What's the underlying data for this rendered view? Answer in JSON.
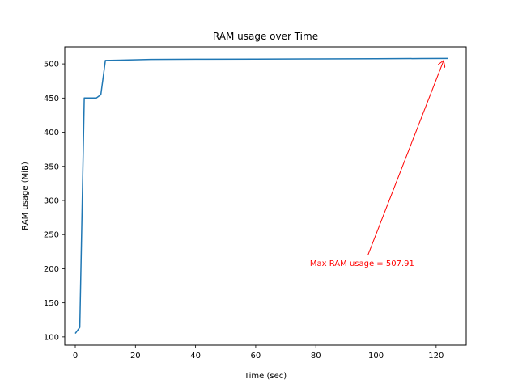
{
  "chart_data": {
    "type": "line",
    "title": "RAM usage over Time",
    "xlabel": "Time (sec)",
    "ylabel": "RAM usage (MiB)",
    "xlim": [
      -3.5,
      130
    ],
    "ylim": [
      88,
      525
    ],
    "xticks": [
      0,
      20,
      40,
      60,
      80,
      100,
      120
    ],
    "yticks": [
      100,
      150,
      200,
      250,
      300,
      350,
      400,
      450,
      500
    ],
    "grid": false,
    "series": [
      {
        "color": "#1f77b4",
        "x": [
          0,
          1.5,
          3,
          5,
          7,
          8.5,
          10,
          15,
          25,
          40,
          60,
          80,
          100,
          115,
          124
        ],
        "y": [
          105,
          114,
          450,
          450,
          450,
          455,
          505,
          505.5,
          506.5,
          506.8,
          507,
          507.2,
          507.5,
          507.8,
          507.91
        ]
      }
    ],
    "annotations": [
      {
        "text": "Max RAM usage = 507.91",
        "color": "#ff0000",
        "target_x": 122.5,
        "target_y": 505,
        "text_x": 97,
        "text_y": 209
      }
    ]
  }
}
